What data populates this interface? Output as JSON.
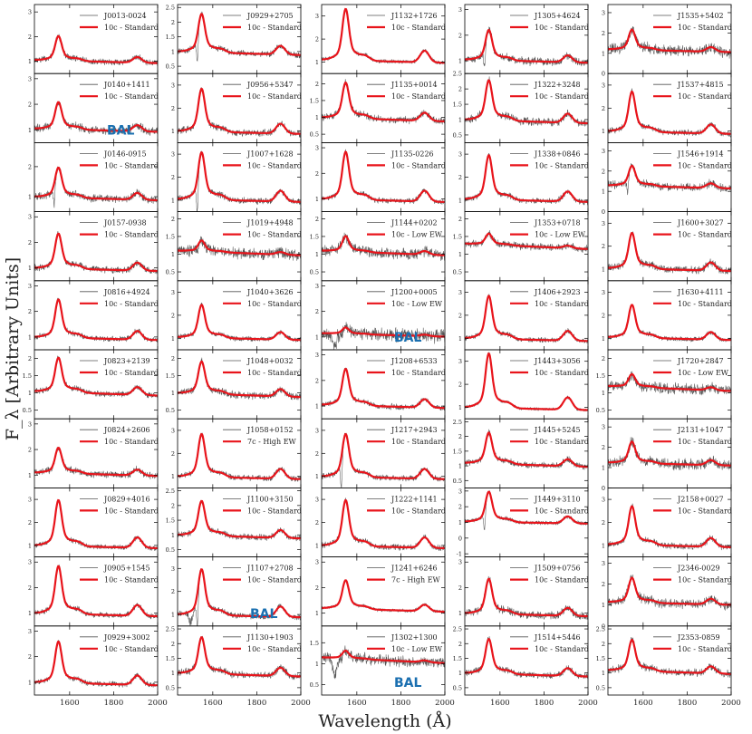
{
  "figure": {
    "xlabel": "Wavelength (Å)",
    "ylabel": "F_λ [Arbitrary Units]",
    "x_ticks": [
      1600,
      1800,
      2000
    ],
    "xlim": [
      1440,
      2000
    ],
    "colors": {
      "observed": "#555555",
      "model": "#e8141b",
      "bal": "#1a6fb0"
    }
  },
  "chart_data": [
    {
      "type": "line",
      "name": "J0013-0024",
      "model": "10c - Standard",
      "ylim": [
        0.5,
        3.3
      ],
      "yticks": [
        1,
        2,
        3
      ],
      "peak": 1.85,
      "base": 1.05,
      "noise": 0.12,
      "bal": false,
      "abs": false
    },
    {
      "type": "line",
      "name": "J0140+1411",
      "model": "10c - Standard",
      "ylim": [
        0.5,
        3.2
      ],
      "yticks": [
        1,
        2,
        3
      ],
      "peak": 1.9,
      "base": 1.05,
      "noise": 0.15,
      "bal": true,
      "abs": false
    },
    {
      "type": "line",
      "name": "J0146-0915",
      "model": "10c - Standard",
      "ylim": [
        0.5,
        2.8
      ],
      "yticks": [
        1,
        2
      ],
      "peak": 1.8,
      "base": 1.0,
      "noise": 0.12,
      "bal": false,
      "abs": true
    },
    {
      "type": "line",
      "name": "J0157-0938",
      "model": "10c - Standard",
      "ylim": [
        0.5,
        3.2
      ],
      "yticks": [
        1,
        2,
        3
      ],
      "peak": 2.1,
      "base": 1.0,
      "noise": 0.12,
      "bal": false,
      "abs": false
    },
    {
      "type": "line",
      "name": "J0816+4924",
      "model": "10c - Standard",
      "ylim": [
        0.5,
        3.2
      ],
      "yticks": [
        1,
        2,
        3
      ],
      "peak": 2.2,
      "base": 1.0,
      "noise": 0.1,
      "bal": false,
      "abs": false
    },
    {
      "type": "line",
      "name": "J0823+2139",
      "model": "10c - Standard",
      "ylim": [
        0.25,
        2.25
      ],
      "yticks": [
        0.5,
        1.0,
        1.5,
        2.0
      ],
      "peak": 1.85,
      "base": 1.05,
      "noise": 0.08,
      "bal": false,
      "abs": false
    },
    {
      "type": "line",
      "name": "J0824+2606",
      "model": "10c - Standard",
      "ylim": [
        0.5,
        3.2
      ],
      "yticks": [
        1,
        2,
        3
      ],
      "peak": 1.9,
      "base": 1.1,
      "noise": 0.13,
      "bal": false,
      "abs": false
    },
    {
      "type": "line",
      "name": "J0829+4016",
      "model": "10c - Standard",
      "ylim": [
        0.5,
        3.5
      ],
      "yticks": [
        1,
        2,
        3
      ],
      "peak": 2.6,
      "base": 1.0,
      "noise": 0.1,
      "bal": false,
      "abs": false
    },
    {
      "type": "line",
      "name": "J0905+1545",
      "model": "10c - Standard",
      "ylim": [
        0.5,
        3.2
      ],
      "yticks": [
        1,
        2,
        3
      ],
      "peak": 2.5,
      "base": 1.0,
      "noise": 0.1,
      "bal": false,
      "abs": false
    },
    {
      "type": "line",
      "name": "J0929+3002",
      "model": "10c - Standard",
      "ylim": [
        0.5,
        3.2
      ],
      "yticks": [
        1,
        2,
        3
      ],
      "peak": 2.3,
      "base": 1.0,
      "noise": 0.1,
      "bal": false,
      "abs": false
    },
    {
      "type": "line",
      "name": "J0929+2705",
      "model": "10c - Standard",
      "ylim": [
        0.25,
        2.6
      ],
      "yticks": [
        0.5,
        1.0,
        1.5,
        2.0,
        2.5
      ],
      "peak": 2.05,
      "base": 1.0,
      "noise": 0.1,
      "bal": false,
      "abs": true
    },
    {
      "type": "line",
      "name": "J0956+5347",
      "model": "10c - Standard",
      "ylim": [
        0.5,
        3.5
      ],
      "yticks": [
        1,
        2,
        3
      ],
      "peak": 2.5,
      "base": 1.0,
      "noise": 0.15,
      "bal": false,
      "abs": false
    },
    {
      "type": "line",
      "name": "J1007+1628",
      "model": "10c - Standard",
      "ylim": [
        0.5,
        3.5
      ],
      "yticks": [
        1,
        2,
        3
      ],
      "peak": 2.7,
      "base": 1.05,
      "noise": 0.13,
      "bal": false,
      "abs": true
    },
    {
      "type": "line",
      "name": "J1019+4948",
      "model": "10c - Standard",
      "ylim": [
        0.25,
        2.2
      ],
      "yticks": [
        0.5,
        1.0,
        1.5,
        2.0
      ],
      "peak": 1.35,
      "base": 1.1,
      "noise": 0.15,
      "bal": false,
      "abs": true
    },
    {
      "type": "line",
      "name": "J1040+3626",
      "model": "10c - Standard",
      "ylim": [
        0.5,
        3.5
      ],
      "yticks": [
        1,
        2,
        3
      ],
      "peak": 2.2,
      "base": 1.05,
      "noise": 0.1,
      "bal": false,
      "abs": false
    },
    {
      "type": "line",
      "name": "J1048+0032",
      "model": "10c - Standard",
      "ylim": [
        0.25,
        2.25
      ],
      "yticks": [
        0.5,
        1.0,
        1.5,
        2.0
      ],
      "peak": 1.75,
      "base": 1.0,
      "noise": 0.1,
      "bal": false,
      "abs": false
    },
    {
      "type": "line",
      "name": "J1058+0152",
      "model": "7c - High EW",
      "ylim": [
        0.5,
        3.5
      ],
      "yticks": [
        1,
        2,
        3
      ],
      "peak": 2.5,
      "base": 1.0,
      "noise": 0.12,
      "bal": false,
      "abs": false
    },
    {
      "type": "line",
      "name": "J1100+3150",
      "model": "10c - Standard",
      "ylim": [
        0.25,
        2.6
      ],
      "yticks": [
        0.5,
        1.0,
        1.5,
        2.0,
        2.5
      ],
      "peak": 1.95,
      "base": 1.0,
      "noise": 0.1,
      "bal": false,
      "abs": false
    },
    {
      "type": "line",
      "name": "J1107+2708",
      "model": "10c - Standard",
      "ylim": [
        0.5,
        3.5
      ],
      "yticks": [
        1,
        2,
        3
      ],
      "peak": 2.6,
      "base": 1.0,
      "noise": 0.12,
      "bal": true,
      "abs": true
    },
    {
      "type": "line",
      "name": "J1130+1903",
      "model": "10c - Standard",
      "ylim": [
        0.25,
        2.6
      ],
      "yticks": [
        0.5,
        1.0,
        1.5,
        2.0,
        2.5
      ],
      "peak": 2.0,
      "base": 1.0,
      "noise": 0.12,
      "bal": false,
      "abs": false
    },
    {
      "type": "line",
      "name": "J1132+1726",
      "model": "10c - Standard",
      "ylim": [
        0.5,
        3.5
      ],
      "yticks": [
        1,
        2,
        3
      ],
      "peak": 2.9,
      "base": 1.1,
      "noise": 0.08,
      "bal": false,
      "abs": false
    },
    {
      "type": "line",
      "name": "J1135+0014",
      "model": "10c - Standard",
      "ylim": [
        0.25,
        2.3
      ],
      "yticks": [
        0.5,
        1.0,
        1.5,
        2.0
      ],
      "peak": 1.85,
      "base": 1.0,
      "noise": 0.1,
      "bal": false,
      "abs": false
    },
    {
      "type": "line",
      "name": "J1135-0226",
      "model": "10c - Standard",
      "ylim": [
        0.5,
        3.2
      ],
      "yticks": [
        1,
        2,
        3
      ],
      "peak": 2.5,
      "base": 1.0,
      "noise": 0.1,
      "bal": false,
      "abs": false
    },
    {
      "type": "line",
      "name": "J1144+0202",
      "model": "10c - Low EW",
      "ylim": [
        0.25,
        2.2
      ],
      "yticks": [
        0.5,
        1.0,
        1.5,
        2.0
      ],
      "peak": 1.45,
      "base": 1.1,
      "noise": 0.15,
      "bal": false,
      "abs": false
    },
    {
      "type": "line",
      "name": "J1200+0005",
      "model": "10c - Low EW",
      "ylim": [
        0.5,
        3.2
      ],
      "yticks": [
        1,
        2,
        3
      ],
      "peak": 1.35,
      "base": 1.15,
      "noise": 0.25,
      "bal": true,
      "abs": true
    },
    {
      "type": "line",
      "name": "J1208+6533",
      "model": "10c - Standard",
      "ylim": [
        0.5,
        3.2
      ],
      "yticks": [
        1,
        2,
        3
      ],
      "peak": 2.2,
      "base": 1.05,
      "noise": 0.1,
      "bal": false,
      "abs": false
    },
    {
      "type": "line",
      "name": "J1217+2943",
      "model": "10c - Standard",
      "ylim": [
        0.5,
        3.5
      ],
      "yticks": [
        1,
        2,
        3
      ],
      "peak": 2.5,
      "base": 1.0,
      "noise": 0.12,
      "bal": false,
      "abs": true
    },
    {
      "type": "line",
      "name": "J1222+1141",
      "model": "10c - Standard",
      "ylim": [
        0.5,
        3.5
      ],
      "yticks": [
        1,
        2,
        3
      ],
      "peak": 2.6,
      "base": 1.0,
      "noise": 0.12,
      "bal": false,
      "abs": false
    },
    {
      "type": "line",
      "name": "J1241+6246",
      "model": "7c - High EW",
      "ylim": [
        0.5,
        3.2
      ],
      "yticks": [
        1,
        2,
        3
      ],
      "peak": 2.1,
      "base": 1.2,
      "noise": 0.06,
      "bal": false,
      "abs": false
    },
    {
      "type": "line",
      "name": "J1302+1300",
      "model": "10c - Low EW",
      "ylim": [
        0.25,
        1.9
      ],
      "yticks": [
        0.5,
        1.0,
        1.5
      ],
      "peak": 1.3,
      "base": 1.15,
      "noise": 0.12,
      "bal": true,
      "abs": true
    },
    {
      "type": "line",
      "name": "J1305+4624",
      "model": "10c - Standard",
      "ylim": [
        0.5,
        3.2
      ],
      "yticks": [
        1,
        2,
        3
      ],
      "peak": 2.0,
      "base": 1.05,
      "noise": 0.15,
      "bal": false,
      "abs": true
    },
    {
      "type": "line",
      "name": "J1322+3248",
      "model": "10c - Standard",
      "ylim": [
        0.25,
        2.5
      ],
      "yticks": [
        0.5,
        1.0,
        1.5,
        2.0,
        2.5
      ],
      "peak": 2.05,
      "base": 1.0,
      "noise": 0.12,
      "bal": false,
      "abs": false
    },
    {
      "type": "line",
      "name": "J1338+0846",
      "model": "10c - Standard",
      "ylim": [
        0.5,
        3.5
      ],
      "yticks": [
        1,
        2,
        3
      ],
      "peak": 2.6,
      "base": 1.05,
      "noise": 0.12,
      "bal": false,
      "abs": false
    },
    {
      "type": "line",
      "name": "J1353+0718",
      "model": "10c - Low EW",
      "ylim": [
        0.25,
        2.2
      ],
      "yticks": [
        0.5,
        1.0,
        1.5,
        2.0
      ],
      "peak": 1.55,
      "base": 1.3,
      "noise": 0.1,
      "bal": false,
      "abs": false
    },
    {
      "type": "line",
      "name": "J1406+2923",
      "model": "10c - Standard",
      "ylim": [
        0.5,
        3.5
      ],
      "yticks": [
        1,
        2,
        3
      ],
      "peak": 2.5,
      "base": 1.0,
      "noise": 0.1,
      "bal": false,
      "abs": false
    },
    {
      "type": "line",
      "name": "J1443+3056",
      "model": "10c - Standard",
      "ylim": [
        0.5,
        3.5
      ],
      "yticks": [
        1,
        2,
        3
      ],
      "peak": 2.9,
      "base": 1.0,
      "noise": 0.06,
      "bal": false,
      "abs": false
    },
    {
      "type": "line",
      "name": "J1445+5245",
      "model": "10c - Standard",
      "ylim": [
        0.25,
        2.6
      ],
      "yticks": [
        0.5,
        1.0,
        1.5,
        2.0,
        2.5
      ],
      "peak": 1.95,
      "base": 1.1,
      "noise": 0.1,
      "bal": false,
      "abs": false
    },
    {
      "type": "line",
      "name": "J1449+3110",
      "model": "10c - Standard",
      "ylim": [
        -1.2,
        3.2
      ],
      "yticks": [
        -1,
        0,
        1,
        2,
        3
      ],
      "peak": 2.6,
      "base": 1.05,
      "noise": 0.12,
      "bal": false,
      "abs": true
    },
    {
      "type": "line",
      "name": "J1509+0756",
      "model": "10c - Standard",
      "ylim": [
        0.5,
        3.2
      ],
      "yticks": [
        1,
        2,
        3
      ],
      "peak": 2.1,
      "base": 1.0,
      "noise": 0.15,
      "bal": false,
      "abs": false
    },
    {
      "type": "line",
      "name": "J1514+5446",
      "model": "10c - Standard",
      "ylim": [
        0.25,
        2.6
      ],
      "yticks": [
        0.5,
        1.0,
        1.5,
        2.0,
        2.5
      ],
      "peak": 1.95,
      "base": 1.0,
      "noise": 0.1,
      "bal": false,
      "abs": false
    },
    {
      "type": "line",
      "name": "J1535+5402",
      "model": "10c - Standard",
      "ylim": [
        0,
        3.4
      ],
      "yticks": [
        0,
        1,
        2,
        3
      ],
      "peak": 2.0,
      "base": 1.2,
      "noise": 0.25,
      "bal": false,
      "abs": false
    },
    {
      "type": "line",
      "name": "J1537+4815",
      "model": "10c - Standard",
      "ylim": [
        0.5,
        3.5
      ],
      "yticks": [
        1,
        2,
        3
      ],
      "peak": 2.4,
      "base": 1.0,
      "noise": 0.12,
      "bal": false,
      "abs": false
    },
    {
      "type": "line",
      "name": "J1546+1914",
      "model": "10c - Standard",
      "ylim": [
        0,
        3.4
      ],
      "yticks": [
        0,
        1,
        2,
        3
      ],
      "peak": 2.1,
      "base": 1.3,
      "noise": 0.18,
      "bal": false,
      "abs": true
    },
    {
      "type": "line",
      "name": "J1600+3027",
      "model": "10c - Standard",
      "ylim": [
        0.5,
        3.5
      ],
      "yticks": [
        1,
        2,
        3
      ],
      "peak": 2.3,
      "base": 1.05,
      "noise": 0.15,
      "bal": false,
      "abs": false
    },
    {
      "type": "line",
      "name": "J1630+4111",
      "model": "10c - Standard",
      "ylim": [
        0.5,
        3.5
      ],
      "yticks": [
        1,
        2,
        3
      ],
      "peak": 2.2,
      "base": 1.05,
      "noise": 0.1,
      "bal": false,
      "abs": false
    },
    {
      "type": "line",
      "name": "J1720+2847",
      "model": "10c - Low EW",
      "ylim": [
        0.25,
        2.25
      ],
      "yticks": [
        0.5,
        1.0,
        1.5,
        2.0
      ],
      "peak": 1.5,
      "base": 1.2,
      "noise": 0.15,
      "bal": false,
      "abs": false
    },
    {
      "type": "line",
      "name": "J2131+1047",
      "model": "10c - Standard",
      "ylim": [
        0,
        3.4
      ],
      "yticks": [
        0,
        1,
        2,
        3
      ],
      "peak": 2.1,
      "base": 1.25,
      "noise": 0.25,
      "bal": false,
      "abs": false
    },
    {
      "type": "line",
      "name": "J2158+0027",
      "model": "10c - Standard",
      "ylim": [
        0.5,
        3.5
      ],
      "yticks": [
        1,
        2,
        3
      ],
      "peak": 2.4,
      "base": 1.05,
      "noise": 0.13,
      "bal": false,
      "abs": false
    },
    {
      "type": "line",
      "name": "J2346-0029",
      "model": "10c - Standard",
      "ylim": [
        0,
        3.3
      ],
      "yticks": [
        0,
        1,
        2,
        3
      ],
      "peak": 2.1,
      "base": 1.15,
      "noise": 0.22,
      "bal": false,
      "abs": false
    },
    {
      "type": "line",
      "name": "J2353-0859",
      "model": "10c - Standard",
      "ylim": [
        0.25,
        2.6
      ],
      "yticks": [
        0.5,
        1.0,
        1.5,
        2.0,
        2.5
      ],
      "peak": 1.95,
      "base": 1.1,
      "noise": 0.12,
      "bal": false,
      "abs": false
    }
  ]
}
